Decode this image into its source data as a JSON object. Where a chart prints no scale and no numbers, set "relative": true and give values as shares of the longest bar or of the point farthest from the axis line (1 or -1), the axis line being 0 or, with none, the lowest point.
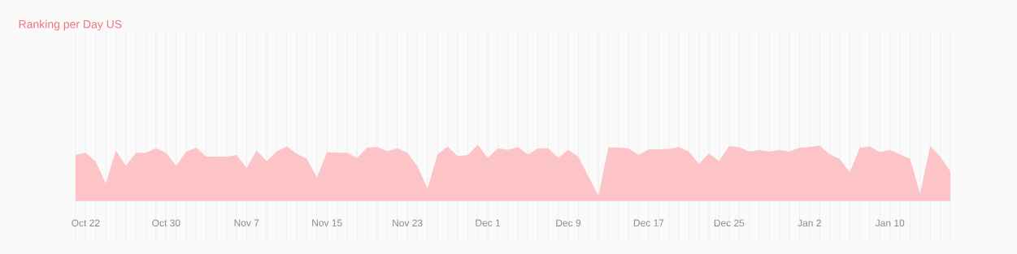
{
  "chart_data": {
    "type": "area",
    "title": "Ranking per Day US",
    "categories": [
      null,
      "Oct 22",
      null,
      null,
      null,
      null,
      null,
      null,
      null,
      "Oct 30",
      null,
      null,
      null,
      null,
      null,
      null,
      null,
      "Nov 7",
      null,
      null,
      null,
      null,
      null,
      null,
      null,
      "Nov 15",
      null,
      null,
      null,
      null,
      null,
      null,
      null,
      "Nov 23",
      null,
      null,
      null,
      null,
      null,
      null,
      null,
      "Dec 1",
      null,
      null,
      null,
      null,
      null,
      null,
      null,
      "Dec 9",
      null,
      null,
      null,
      null,
      null,
      null,
      null,
      "Dec 17",
      null,
      null,
      null,
      null,
      null,
      null,
      null,
      "Dec 25",
      null,
      null,
      null,
      null,
      null,
      null,
      null,
      "Jan 2",
      null,
      null,
      null,
      null,
      null,
      null,
      null,
      "Jan 10",
      null,
      null,
      null,
      null,
      null,
      null
    ],
    "values": [
      0.82,
      0.86,
      0.7,
      0.31,
      0.9,
      0.63,
      0.86,
      0.86,
      0.94,
      0.86,
      0.63,
      0.88,
      0.95,
      0.79,
      0.79,
      0.79,
      0.82,
      0.59,
      0.9,
      0.71,
      0.88,
      0.97,
      0.84,
      0.75,
      0.42,
      0.87,
      0.86,
      0.86,
      0.77,
      0.95,
      0.96,
      0.89,
      0.94,
      0.86,
      0.62,
      0.22,
      0.83,
      0.97,
      0.8,
      0.82,
      1,
      0.77,
      0.94,
      0.91,
      0.96,
      0.83,
      0.94,
      0.94,
      0.77,
      0.91,
      0.79,
      0.44,
      0.09,
      0.96,
      0.95,
      0.94,
      0.82,
      0.92,
      0.92,
      0.93,
      0.96,
      0.88,
      0.66,
      0.85,
      0.71,
      0.98,
      0.96,
      0.88,
      0.91,
      0.88,
      0.91,
      0.88,
      0.95,
      0.96,
      0.99,
      0.83,
      0.75,
      0.51,
      0.95,
      0.97,
      0.87,
      0.91,
      0.83,
      0.75,
      0.13,
      0.98,
      0.79,
      0.53
    ],
    "color": "#fdc4c7",
    "relative": true,
    "grid": "x"
  }
}
